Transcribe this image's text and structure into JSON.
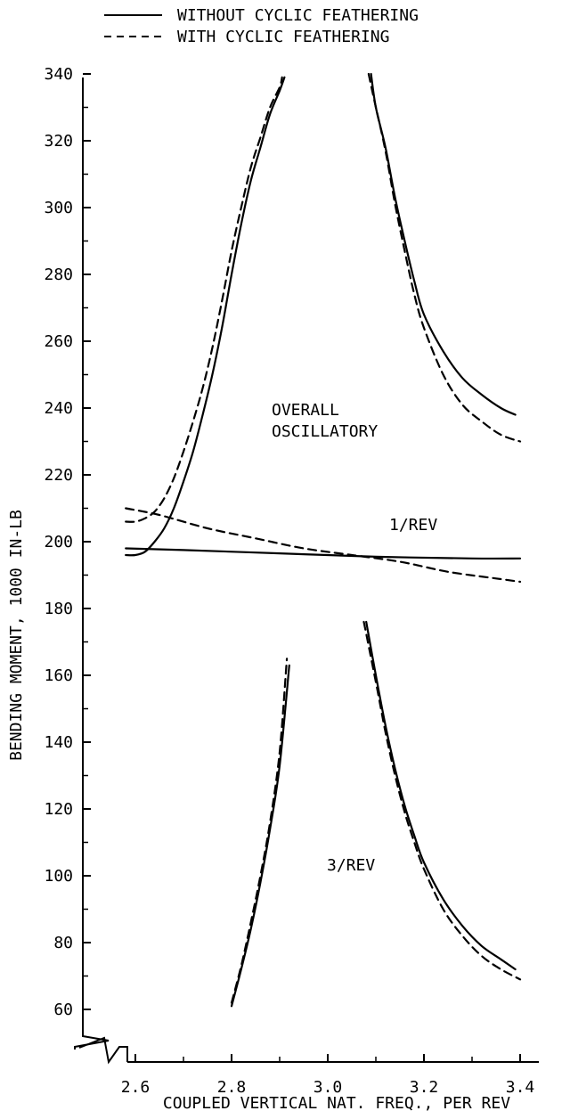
{
  "chart_data": {
    "type": "line",
    "title": "",
    "xlabel": "COUPLED VERTICAL NAT. FREQ., PER REV",
    "ylabel": "BENDING MOMENT, 1000 IN-LB",
    "xlim": [
      2.6,
      3.4
    ],
    "ylim": [
      60,
      340
    ],
    "x_ticks": [
      "2.6",
      "2.8",
      "3.0",
      "3.2",
      "3.4"
    ],
    "y_ticks": [
      "60",
      "80",
      "100",
      "120",
      "140",
      "160",
      "180",
      "200",
      "220",
      "240",
      "260",
      "280",
      "300",
      "320",
      "340"
    ],
    "grid": false,
    "axis_break": true,
    "legend_position": "top",
    "legend": [
      {
        "label": "WITHOUT CYCLIC FEATHERING",
        "style": "solid"
      },
      {
        "label": "WITH CYCLIC FEATHERING",
        "style": "dashed"
      }
    ],
    "annotations": [
      "OVERALL",
      "OSCILLATORY",
      "1/REV",
      "3/REV"
    ],
    "series": [
      {
        "legend": "WITHOUT CYCLIC FEATHERING",
        "curve": "OVERALL OSCILLATORY",
        "style": "solid",
        "points": [
          [
            2.58,
            196
          ],
          [
            2.6,
            196
          ],
          [
            2.62,
            197
          ],
          [
            2.64,
            200
          ],
          [
            2.66,
            204
          ],
          [
            2.68,
            210
          ],
          [
            2.7,
            218
          ],
          [
            2.72,
            227
          ],
          [
            2.74,
            238
          ],
          [
            2.76,
            250
          ],
          [
            2.78,
            264
          ],
          [
            2.8,
            280
          ],
          [
            2.82,
            295
          ],
          [
            2.84,
            308
          ],
          [
            2.86,
            318
          ],
          [
            2.88,
            328
          ],
          [
            2.9,
            335
          ],
          [
            2.91,
            339
          ]
        ]
      },
      {
        "legend": "WITH CYCLIC FEATHERING",
        "curve": "OVERALL OSCILLATORY",
        "style": "dashed",
        "points": [
          [
            2.58,
            206
          ],
          [
            2.6,
            206
          ],
          [
            2.62,
            207
          ],
          [
            2.64,
            209
          ],
          [
            2.66,
            213
          ],
          [
            2.68,
            219
          ],
          [
            2.7,
            227
          ],
          [
            2.72,
            236
          ],
          [
            2.74,
            246
          ],
          [
            2.76,
            258
          ],
          [
            2.78,
            272
          ],
          [
            2.8,
            287
          ],
          [
            2.82,
            300
          ],
          [
            2.84,
            312
          ],
          [
            2.86,
            321
          ],
          [
            2.88,
            330
          ],
          [
            2.9,
            336
          ],
          [
            2.905,
            339
          ]
        ]
      },
      {
        "legend": "WITHOUT CYCLIC FEATHERING",
        "curve": "OVERALL OSCILLATORY",
        "style": "solid",
        "points": [
          [
            3.09,
            340
          ],
          [
            3.1,
            330
          ],
          [
            3.12,
            318
          ],
          [
            3.14,
            303
          ],
          [
            3.16,
            290
          ],
          [
            3.18,
            278
          ],
          [
            3.2,
            268
          ],
          [
            3.24,
            257
          ],
          [
            3.28,
            249
          ],
          [
            3.32,
            244
          ],
          [
            3.36,
            240
          ],
          [
            3.39,
            238
          ]
        ]
      },
      {
        "legend": "WITH CYCLIC FEATHERING",
        "curve": "OVERALL OSCILLATORY",
        "style": "dashed",
        "points": [
          [
            3.085,
            340
          ],
          [
            3.1,
            330
          ],
          [
            3.12,
            317
          ],
          [
            3.14,
            301
          ],
          [
            3.16,
            287
          ],
          [
            3.18,
            274
          ],
          [
            3.2,
            264
          ],
          [
            3.24,
            250
          ],
          [
            3.28,
            241
          ],
          [
            3.32,
            236
          ],
          [
            3.36,
            232
          ],
          [
            3.4,
            230
          ]
        ]
      },
      {
        "legend": "WITHOUT CYCLIC FEATHERING",
        "curve": "1/REV",
        "style": "solid",
        "points": [
          [
            2.58,
            198
          ],
          [
            2.7,
            197.5
          ],
          [
            2.9,
            196.5
          ],
          [
            3.1,
            195.5
          ],
          [
            3.3,
            195
          ],
          [
            3.4,
            195
          ]
        ]
      },
      {
        "legend": "WITH CYCLIC FEATHERING",
        "curve": "1/REV",
        "style": "dashed",
        "points": [
          [
            2.58,
            210
          ],
          [
            2.65,
            208
          ],
          [
            2.75,
            204
          ],
          [
            2.85,
            201
          ],
          [
            2.95,
            198
          ],
          [
            3.05,
            196
          ],
          [
            3.15,
            194
          ],
          [
            3.25,
            191
          ],
          [
            3.35,
            189
          ],
          [
            3.4,
            188
          ]
        ]
      },
      {
        "legend": "WITHOUT CYCLIC FEATHERING",
        "curve": "3/REV",
        "style": "solid",
        "points": [
          [
            2.8,
            61
          ],
          [
            2.82,
            72
          ],
          [
            2.84,
            84
          ],
          [
            2.86,
            98
          ],
          [
            2.88,
            114
          ],
          [
            2.9,
            133
          ],
          [
            2.92,
            163
          ]
        ]
      },
      {
        "legend": "WITH CYCLIC FEATHERING",
        "curve": "3/REV",
        "style": "dashed",
        "points": [
          [
            2.8,
            62
          ],
          [
            2.82,
            73
          ],
          [
            2.84,
            86
          ],
          [
            2.86,
            100
          ],
          [
            2.88,
            116
          ],
          [
            2.9,
            137
          ],
          [
            2.915,
            165
          ]
        ]
      },
      {
        "legend": "WITHOUT CYCLIC FEATHERING",
        "curve": "3/REV",
        "style": "solid",
        "points": [
          [
            3.08,
            176
          ],
          [
            3.1,
            160
          ],
          [
            3.12,
            145
          ],
          [
            3.14,
            132
          ],
          [
            3.16,
            121
          ],
          [
            3.18,
            112
          ],
          [
            3.2,
            104
          ],
          [
            3.24,
            93
          ],
          [
            3.28,
            85
          ],
          [
            3.32,
            79
          ],
          [
            3.36,
            75
          ],
          [
            3.39,
            72
          ]
        ]
      },
      {
        "legend": "WITH CYCLIC FEATHERING",
        "curve": "3/REV",
        "style": "dashed",
        "points": [
          [
            3.075,
            176
          ],
          [
            3.1,
            158
          ],
          [
            3.12,
            143
          ],
          [
            3.14,
            130
          ],
          [
            3.16,
            119
          ],
          [
            3.18,
            110
          ],
          [
            3.2,
            102
          ],
          [
            3.24,
            90
          ],
          [
            3.28,
            82
          ],
          [
            3.32,
            76
          ],
          [
            3.36,
            72
          ],
          [
            3.4,
            69
          ]
        ]
      }
    ]
  }
}
